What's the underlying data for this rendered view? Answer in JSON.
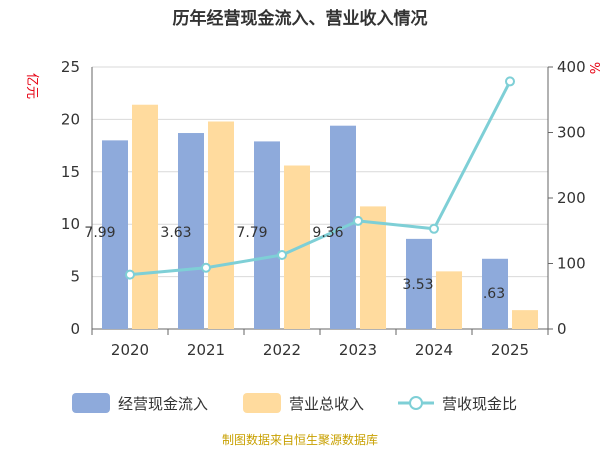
{
  "chart_data": {
    "type": "bar",
    "title": "历年经营现金流入、营业收入情况",
    "left_axis_unit": "亿元",
    "right_axis_unit": "%",
    "categories": [
      "2020",
      "2021",
      "2022",
      "2023",
      "2024",
      "2025"
    ],
    "left_ylim": [
      0,
      25
    ],
    "left_yticks": [
      "0",
      "5",
      "10",
      "15",
      "20",
      "25"
    ],
    "right_ylim": [
      0,
      400
    ],
    "right_yticks": [
      "0",
      "100",
      "200",
      "300",
      "400"
    ],
    "series": [
      {
        "name": "经营现金流入",
        "type": "bar",
        "axis": "left",
        "color": "#8eaadb",
        "values": [
          18.0,
          18.7,
          17.9,
          19.4,
          8.6,
          6.7
        ]
      },
      {
        "name": "营业总收入",
        "type": "bar",
        "axis": "left",
        "color": "#ffdb9e",
        "values": [
          21.4,
          19.8,
          15.6,
          11.7,
          5.5,
          1.8
        ]
      },
      {
        "name": "营收现金比",
        "type": "line",
        "axis": "right",
        "color": "#7ecfd6",
        "values": [
          83.0,
          93.5,
          113.0,
          165.0,
          153.0,
          378.0
        ]
      }
    ],
    "data_labels": [
      "7.99",
      "3.63",
      "7.79",
      "9.36",
      "3.53",
      ".63"
    ],
    "grid": true,
    "legend": "bottom",
    "footer": "制图数据来自恒生聚源数据库"
  }
}
